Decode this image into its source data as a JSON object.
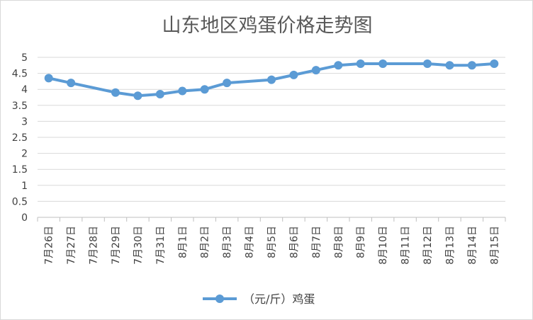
{
  "chart_data": {
    "type": "line",
    "title": "山东地区鸡蛋价格走势图",
    "xlabel": "",
    "ylabel": "",
    "ylim": [
      0,
      5
    ],
    "y_ticks": [
      "0",
      "0.5",
      "1",
      "1.5",
      "2",
      "2.5",
      "3",
      "3.5",
      "4",
      "4.5",
      "5"
    ],
    "grid": true,
    "legend_position": "bottom",
    "categories": [
      "7月26日",
      "7月27日",
      "7月28日",
      "7月29日",
      "7月30日",
      "7月31日",
      "8月1日",
      "8月2日",
      "8月3日",
      "8月4日",
      "8月5日",
      "8月6日",
      "8月7日",
      "8月8日",
      "8月9日",
      "8月10日",
      "8月11日",
      "8月12日",
      "8月13日",
      "8月14日",
      "8月15日"
    ],
    "series": [
      {
        "name": "（元/斤）鸡蛋",
        "color": "#5b9bd5",
        "values": [
          4.35,
          4.2,
          null,
          3.9,
          3.8,
          3.85,
          3.95,
          4.0,
          4.2,
          null,
          4.3,
          4.45,
          4.6,
          4.75,
          4.8,
          4.8,
          null,
          4.8,
          4.75,
          4.75,
          4.8
        ]
      }
    ]
  }
}
